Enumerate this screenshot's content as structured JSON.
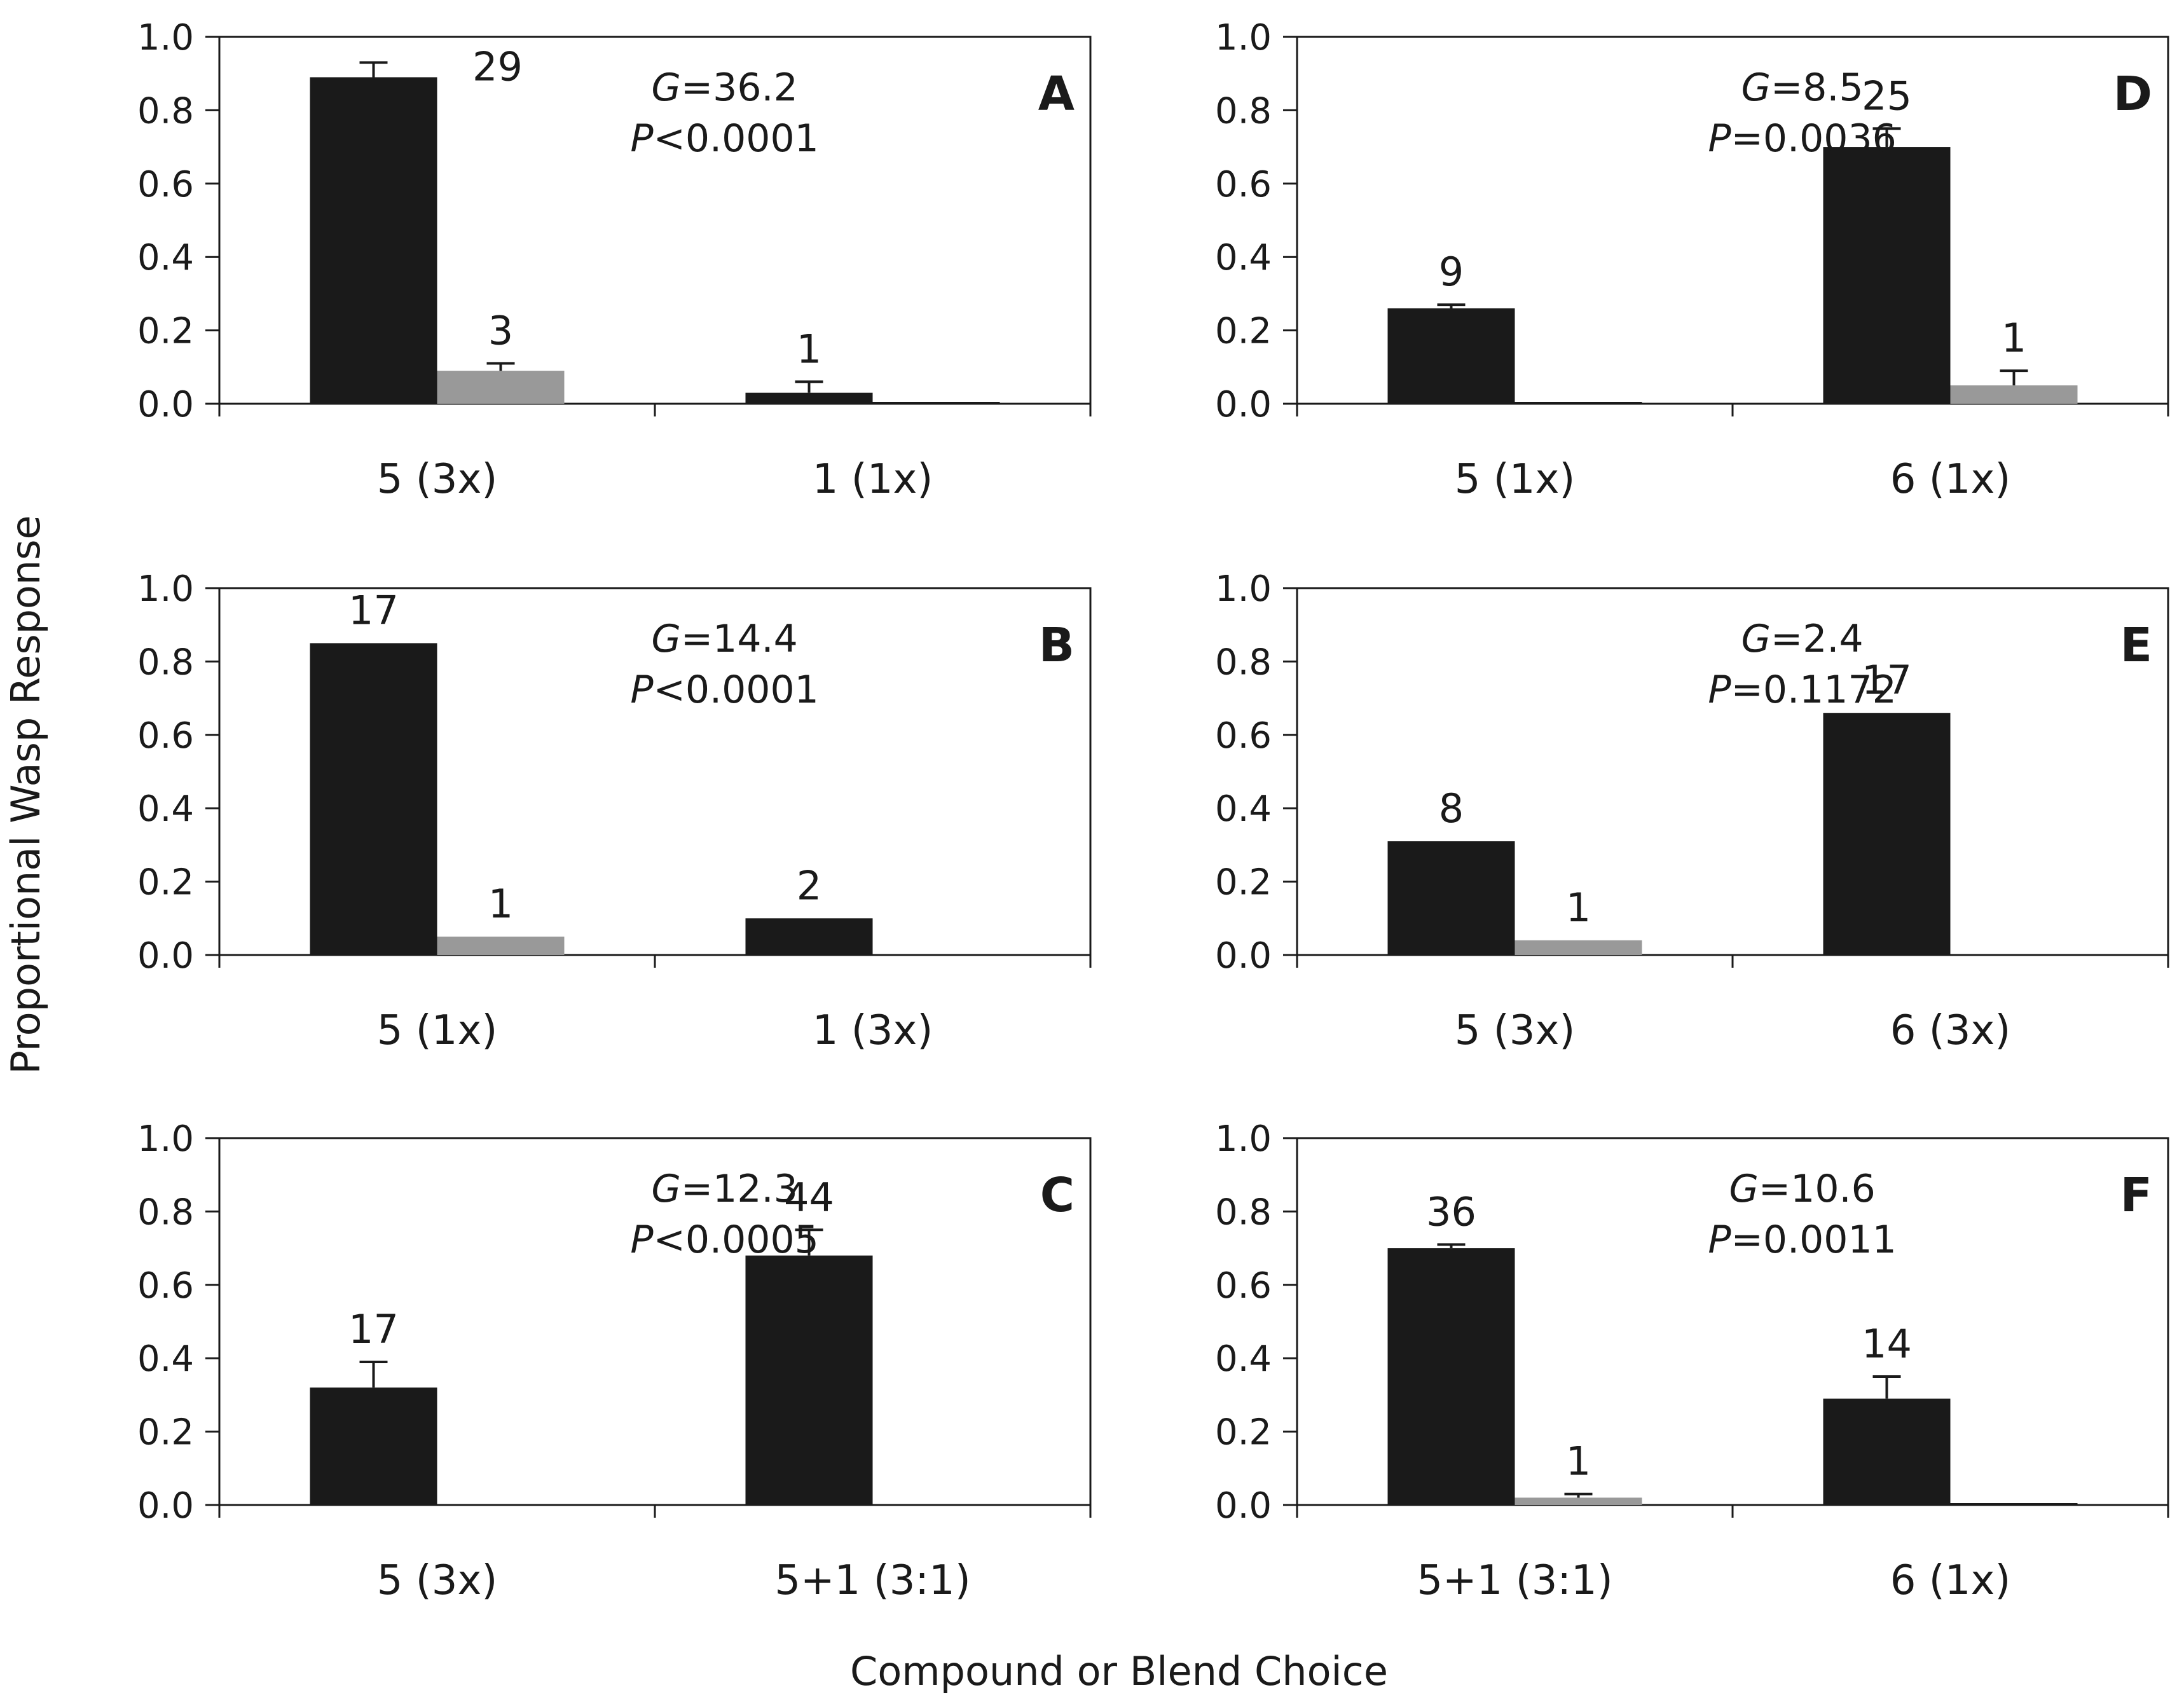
{
  "y_axis_label": "Proportional Wasp Response",
  "x_axis_label": "Compound or Blend Choice",
  "colors": {
    "primary": "#1a1a1a",
    "secondary": "#999999",
    "axis": "#1a1a1a"
  },
  "chart_data": [
    {
      "panel": "A",
      "type": "bar",
      "ylim": [
        0,
        1
      ],
      "yticks": [
        "0.0",
        "0.2",
        "0.4",
        "0.6",
        "0.8",
        "1.0"
      ],
      "stat": {
        "g_sym": "G",
        "g_rest": "=36.2",
        "p_sym": "P",
        "p_rest": "<0.0001"
      },
      "categories": [
        {
          "label": "5 (3x)",
          "bars": [
            {
              "value": 0.89,
              "error": 0.04,
              "n": "29",
              "color": "primary"
            },
            {
              "value": 0.09,
              "error": 0.02,
              "n": "3",
              "color": "secondary"
            }
          ]
        },
        {
          "label": "1 (1x)",
          "bars": [
            {
              "value": 0.03,
              "error": 0.03,
              "n": "1",
              "color": "primary"
            },
            {
              "value": 0.0,
              "error": 0,
              "n": "",
              "color": "primary"
            }
          ]
        }
      ]
    },
    {
      "panel": "D",
      "type": "bar",
      "ylim": [
        0,
        1
      ],
      "yticks": [
        "0.0",
        "0.2",
        "0.4",
        "0.6",
        "0.8",
        "1.0"
      ],
      "stat": {
        "g_sym": "G",
        "g_rest": "=8.5",
        "p_sym": "P",
        "p_rest": "=0.0036"
      },
      "categories": [
        {
          "label": "5 (1x)",
          "bars": [
            {
              "value": 0.26,
              "error": 0.01,
              "n": "9",
              "color": "primary"
            },
            {
              "value": 0.0,
              "error": 0,
              "n": "",
              "color": "primary"
            }
          ]
        },
        {
          "label": "6 (1x)",
          "bars": [
            {
              "value": 0.7,
              "error": 0.05,
              "n": "25",
              "color": "primary"
            },
            {
              "value": 0.05,
              "error": 0.04,
              "n": "1",
              "color": "secondary"
            }
          ]
        }
      ]
    },
    {
      "panel": "B",
      "type": "bar",
      "ylim": [
        0,
        1
      ],
      "yticks": [
        "0.0",
        "0.2",
        "0.4",
        "0.6",
        "0.8",
        "1.0"
      ],
      "stat": {
        "g_sym": "G",
        "g_rest": "=14.4",
        "p_sym": "P",
        "p_rest": "<0.0001"
      },
      "categories": [
        {
          "label": "5 (1x)",
          "bars": [
            {
              "value": 0.85,
              "error": 0,
              "n": "17",
              "color": "primary"
            },
            {
              "value": 0.05,
              "error": 0,
              "n": "1",
              "color": "secondary"
            }
          ]
        },
        {
          "label": "1 (3x)",
          "bars": [
            {
              "value": 0.1,
              "error": 0,
              "n": "2",
              "color": "primary"
            }
          ]
        }
      ]
    },
    {
      "panel": "E",
      "type": "bar",
      "ylim": [
        0,
        1
      ],
      "yticks": [
        "0.0",
        "0.2",
        "0.4",
        "0.6",
        "0.8",
        "1.0"
      ],
      "stat": {
        "g_sym": "G",
        "g_rest": "=2.4",
        "p_sym": "P",
        "p_rest": "=0.1172"
      },
      "categories": [
        {
          "label": "5 (3x)",
          "bars": [
            {
              "value": 0.31,
              "error": 0,
              "n": "8",
              "color": "primary"
            },
            {
              "value": 0.04,
              "error": 0,
              "n": "1",
              "color": "secondary"
            }
          ]
        },
        {
          "label": "6 (3x)",
          "bars": [
            {
              "value": 0.66,
              "error": 0,
              "n": "17",
              "color": "primary"
            }
          ]
        }
      ]
    },
    {
      "panel": "C",
      "type": "bar",
      "ylim": [
        0,
        1
      ],
      "yticks": [
        "0.0",
        "0.2",
        "0.4",
        "0.6",
        "0.8",
        "1.0"
      ],
      "stat": {
        "g_sym": "G",
        "g_rest": "=12.3",
        "p_sym": "P",
        "p_rest": "<0.0005"
      },
      "categories": [
        {
          "label": "5 (3x)",
          "bars": [
            {
              "value": 0.32,
              "error": 0.07,
              "n": "17",
              "color": "primary"
            }
          ]
        },
        {
          "label": "5+1 (3:1)",
          "bars": [
            {
              "value": 0.68,
              "error": 0.07,
              "n": "44",
              "color": "primary"
            }
          ]
        }
      ]
    },
    {
      "panel": "F",
      "type": "bar",
      "ylim": [
        0,
        1
      ],
      "yticks": [
        "0.0",
        "0.2",
        "0.4",
        "0.6",
        "0.8",
        "1.0"
      ],
      "stat": {
        "g_sym": "G",
        "g_rest": "=10.6",
        "p_sym": "P",
        "p_rest": "=0.0011"
      },
      "categories": [
        {
          "label": "5+1 (3:1)",
          "bars": [
            {
              "value": 0.7,
              "error": 0.01,
              "n": "36",
              "color": "primary"
            },
            {
              "value": 0.02,
              "error": 0.01,
              "n": "1",
              "color": "secondary"
            }
          ]
        },
        {
          "label": "6 (1x)",
          "bars": [
            {
              "value": 0.29,
              "error": 0.06,
              "n": "14",
              "color": "primary"
            },
            {
              "value": 0.0,
              "error": 0,
              "n": "",
              "color": "primary"
            }
          ]
        }
      ]
    }
  ]
}
